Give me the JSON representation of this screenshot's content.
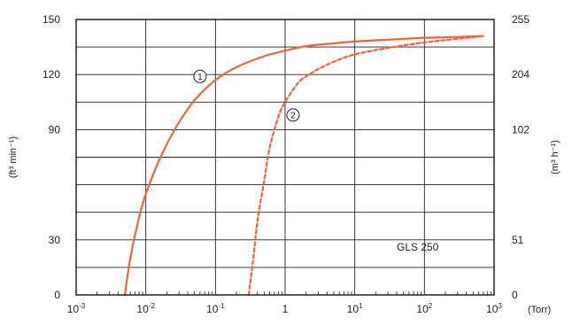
{
  "chart_data": {
    "type": "line",
    "title": "",
    "xlabel": "(Torr)",
    "ylabel_left": "(ft³ min⁻¹)",
    "ylabel_right": "(m³ h⁻¹)",
    "xscale": "log",
    "xlim": [
      0.001,
      1000
    ],
    "ylim": [
      0,
      150
    ],
    "x_ticks": [
      0.001,
      0.01,
      0.1,
      1,
      10,
      100,
      1000
    ],
    "x_tick_labels": [
      {
        "base": "10",
        "exp": "-3"
      },
      {
        "base": "10",
        "exp": "-2"
      },
      {
        "base": "10",
        "exp": "-1"
      },
      {
        "base": "1",
        "exp": ""
      },
      {
        "base": "10",
        "exp": "1"
      },
      {
        "base": "10",
        "exp": "2"
      },
      {
        "base": "10",
        "exp": "3"
      }
    ],
    "y_left_ticks": [
      0,
      30,
      90,
      120,
      150
    ],
    "y_left_labels": [
      "0",
      "30",
      "90",
      "120",
      "150"
    ],
    "y_right_labels": [
      "0",
      "51",
      "102",
      "204",
      "255"
    ],
    "grid": true,
    "annotation": "GLS 250",
    "colors": {
      "curve": "#f0643c",
      "grid": "#222222"
    },
    "series": [
      {
        "marker": "1",
        "style": "solid",
        "x": [
          0.005,
          0.006,
          0.008,
          0.01,
          0.015,
          0.02,
          0.03,
          0.05,
          0.1,
          0.2,
          0.5,
          1,
          2,
          5,
          10,
          30,
          100,
          300,
          700
        ],
        "y": [
          0,
          20,
          42,
          55,
          72,
          82,
          94,
          106,
          117,
          124,
          130,
          133,
          135.5,
          137,
          138,
          139,
          140,
          140.5,
          141
        ]
      },
      {
        "marker": "2",
        "style": "dashed",
        "x": [
          0.3,
          0.35,
          0.4,
          0.5,
          0.6,
          0.8,
          1,
          1.5,
          2,
          3,
          5,
          10,
          30,
          100,
          300,
          700
        ],
        "y": [
          0,
          20,
          40,
          62,
          80,
          97,
          105,
          115,
          119,
          123,
          127,
          131,
          134.5,
          137.5,
          139.5,
          141
        ]
      }
    ],
    "series_markers": [
      {
        "label": "1",
        "x": 0.06,
        "y": 119
      },
      {
        "label": "2",
        "x": 1.3,
        "y": 98
      }
    ]
  }
}
